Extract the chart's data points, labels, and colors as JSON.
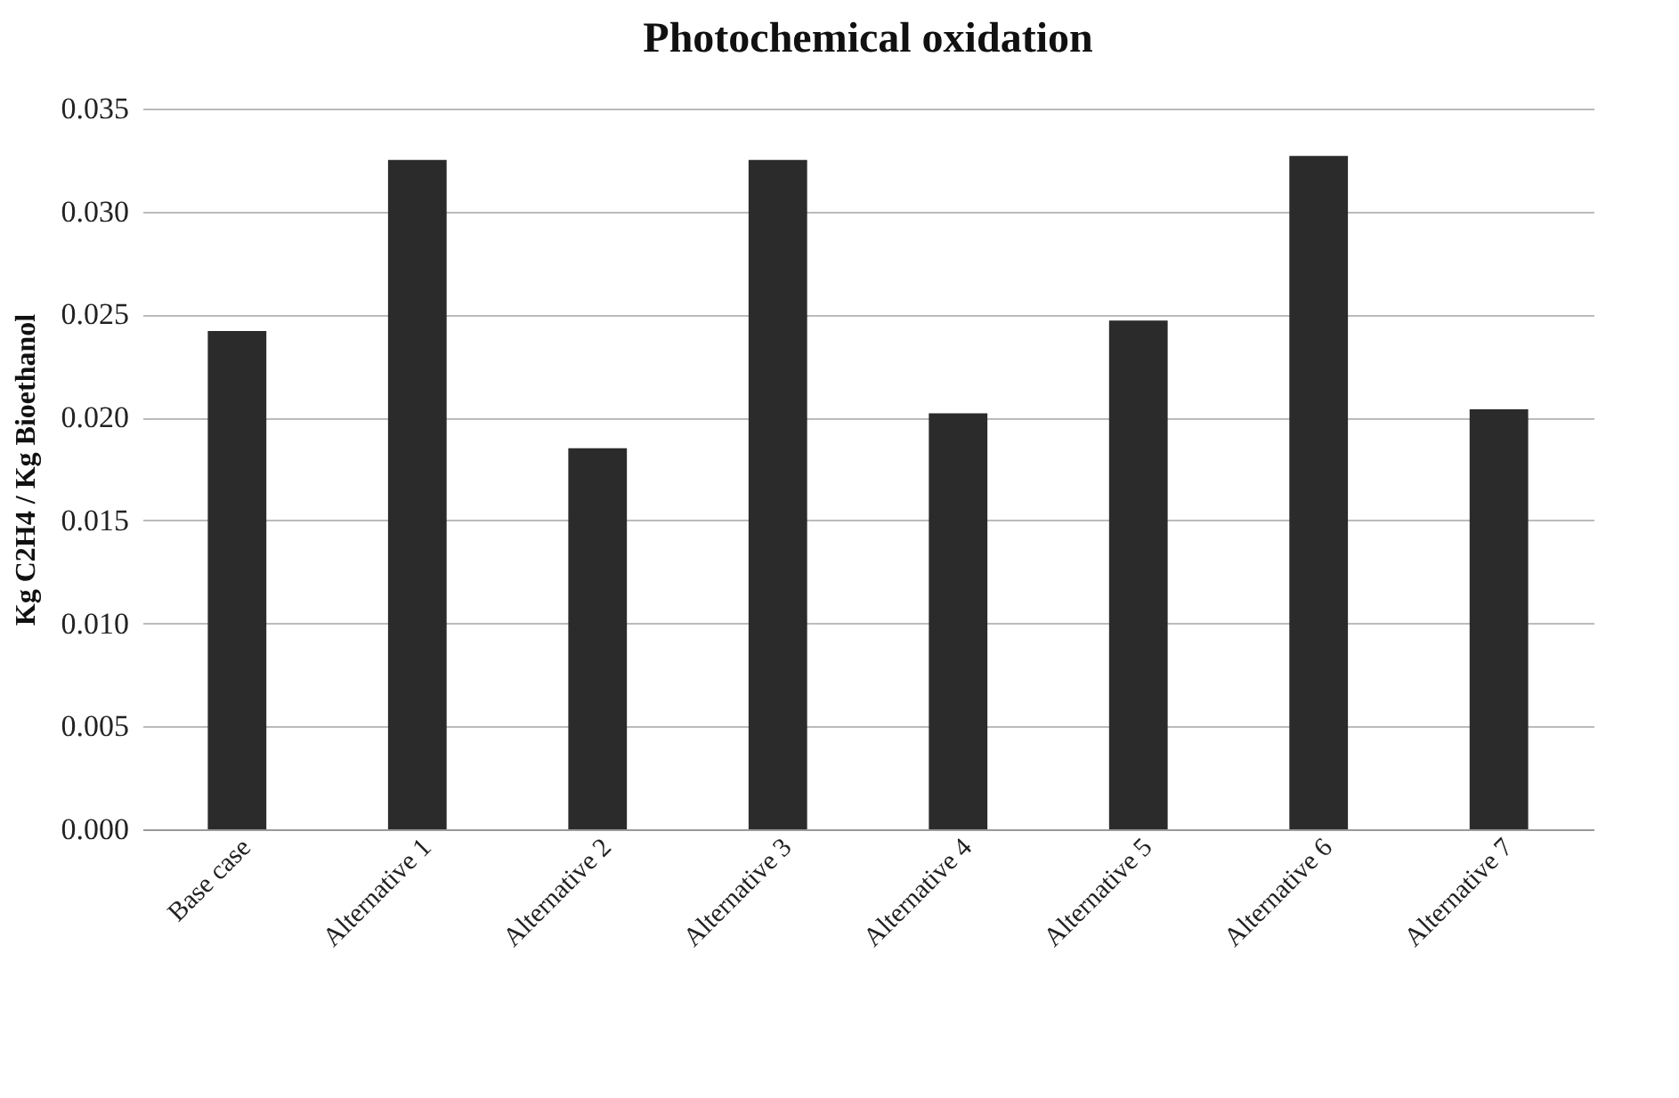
{
  "chart_data": {
    "type": "bar",
    "title": "Photochemical oxidation",
    "ylabel": "Kg C2H4 / Kg Bioethanol",
    "categories": [
      "Base case",
      "Alternative 1",
      "Alternative 2",
      "Alternative 3",
      "Alternative 4",
      "Alternative 5",
      "Alternative 6",
      "Alternative 7"
    ],
    "values": [
      0.0242,
      0.0325,
      0.0185,
      0.0325,
      0.0202,
      0.0247,
      0.0327,
      0.0204
    ],
    "color": "#2b2b2b",
    "ylim": [
      0,
      0.035
    ],
    "yticks": [
      {
        "value": 0,
        "label": "0.000"
      },
      {
        "value": 0.005,
        "label": "0.005"
      },
      {
        "value": 0.01,
        "label": "0.010"
      },
      {
        "value": 0.015,
        "label": "0.015"
      },
      {
        "value": 0.02,
        "label": "0.020"
      },
      {
        "value": 0.025,
        "label": "0.025"
      },
      {
        "value": 0.03,
        "label": "0.030"
      },
      {
        "value": 0.035,
        "label": "0.035"
      }
    ],
    "grid": "y"
  }
}
